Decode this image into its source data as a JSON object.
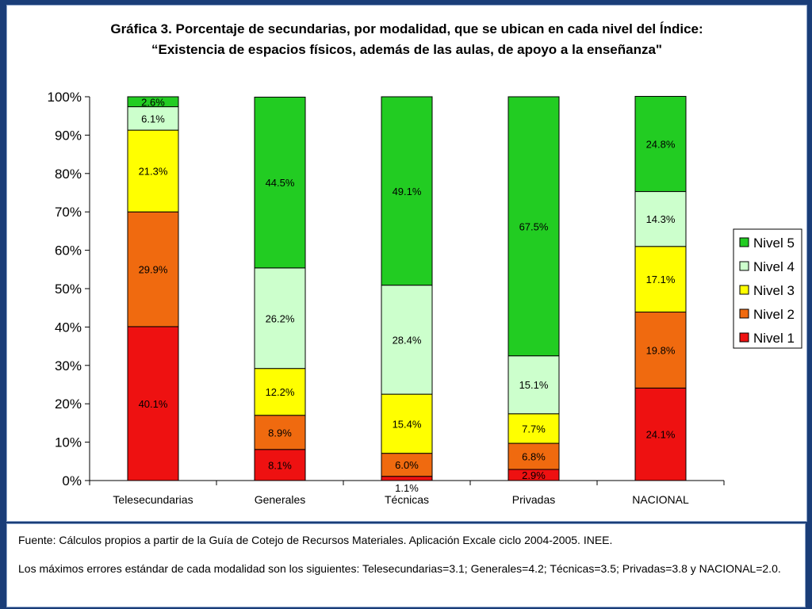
{
  "chart_data": {
    "type": "bar",
    "stacked": true,
    "title": [
      "Gráfica 3. Porcentaje de secundarias, por modalidad, que se ubican en cada nivel del Índice:",
      "“Existencia de espacios físicos, además de las aulas, de apoyo a la enseñanza\""
    ],
    "categories": [
      "Telesecundarias",
      "Generales",
      "Técnicas",
      "Privadas",
      "NACIONAL"
    ],
    "ylim": [
      0,
      100
    ],
    "yticks": [
      "0%",
      "10%",
      "20%",
      "30%",
      "40%",
      "50%",
      "60%",
      "70%",
      "80%",
      "90%",
      "100%"
    ],
    "legend_position": "right",
    "series": [
      {
        "name": "Nivel 1",
        "color": "#ee1111",
        "values": [
          40.1,
          8.1,
          1.1,
          2.9,
          24.1
        ],
        "labels": [
          "40.1%",
          "8.1%",
          "1.1%",
          "2.9%",
          "24.1%"
        ]
      },
      {
        "name": "Nivel 2",
        "color": "#f06a0f",
        "values": [
          29.9,
          8.9,
          6.0,
          6.8,
          19.8
        ],
        "labels": [
          "29.9%",
          "8.9%",
          "6.0%",
          "6.8%",
          "19.8%"
        ]
      },
      {
        "name": "Nivel 3",
        "color": "#ffff00",
        "values": [
          21.3,
          12.2,
          15.4,
          7.7,
          17.1
        ],
        "labels": [
          "21.3%",
          "12.2%",
          "15.4%",
          "7.7%",
          "17.1%"
        ]
      },
      {
        "name": "Nivel 4",
        "color": "#ccffcc",
        "values": [
          6.1,
          26.2,
          28.4,
          15.1,
          14.3
        ],
        "labels": [
          "6.1%",
          "26.2%",
          "28.4%",
          "15.1%",
          "14.3%"
        ]
      },
      {
        "name": "Nivel 5",
        "color": "#22cc22",
        "values": [
          2.6,
          44.5,
          49.1,
          67.5,
          24.8
        ],
        "labels": [
          "2.6%",
          "44.5%",
          "49.1%",
          "67.5%",
          "24.8%"
        ]
      }
    ]
  },
  "footnotes": {
    "source": "Fuente: Cálculos propios a partir de la Guía de Cotejo de Recursos Materiales. Aplicación Excale ciclo 2004-2005. INEE.",
    "errors": "Los máximos errores estándar de cada modalidad son los siguientes: Telesecundarias=3.1; Generales=4.2; Técnicas=3.5; Privadas=3.8 y NACIONAL=2.0."
  }
}
